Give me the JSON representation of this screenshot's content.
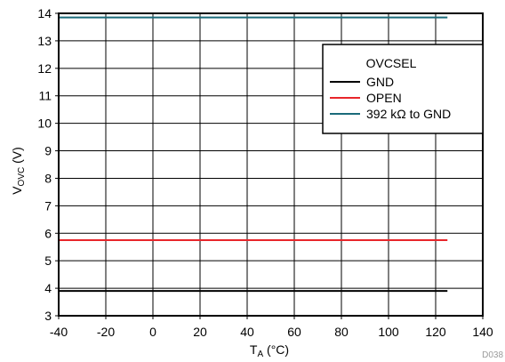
{
  "chart_data": {
    "type": "line",
    "x": [
      -40,
      125
    ],
    "xlim": [
      -40,
      140
    ],
    "ylim": [
      3,
      14
    ],
    "xticks": [
      -40,
      -20,
      0,
      20,
      40,
      60,
      80,
      100,
      120,
      140
    ],
    "yticks": [
      3,
      4,
      5,
      6,
      7,
      8,
      9,
      10,
      11,
      12,
      13,
      14
    ],
    "grid": true,
    "legend_position": "top-right",
    "xlabel": {
      "main": "T",
      "sub": "A",
      "unit": " (°C)"
    },
    "ylabel": {
      "main": "V",
      "sub": "OVC",
      "unit": " (V)"
    },
    "legend_title": "OVCSEL",
    "series": [
      {
        "name": "GND",
        "color": "#000000",
        "values": [
          3.9,
          3.9
        ]
      },
      {
        "name": "OPEN",
        "color": "#e8262b",
        "values": [
          5.75,
          5.75
        ]
      },
      {
        "name": "392 kΩ to GND",
        "color": "#1a6b7a",
        "values": [
          13.85,
          13.85
        ]
      }
    ],
    "footnote": "D038"
  }
}
